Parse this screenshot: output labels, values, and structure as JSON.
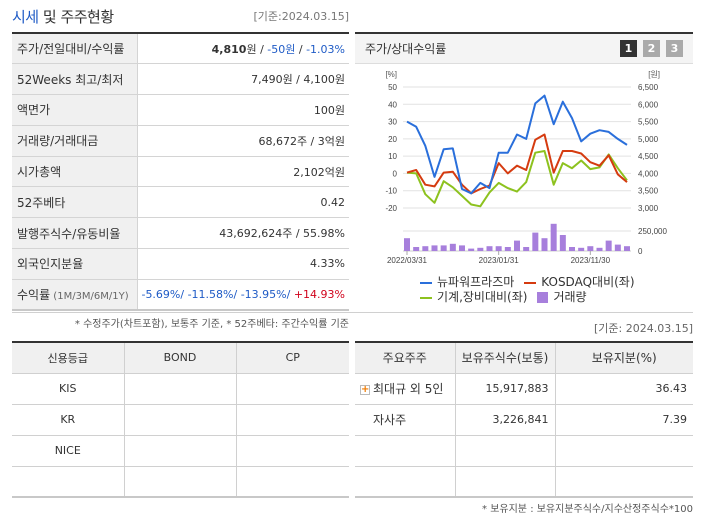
{
  "left": {
    "title_accent": "시세",
    "title_rest": " 및 주주현황",
    "date": "[기준:2024.03.15]",
    "rows": [
      {
        "label": "주가/전일대비/수익률",
        "price": "4,810",
        "price_unit": "원",
        "sep": " / ",
        "change": "-50원",
        "sep2": " / ",
        "rate": "-1.03%"
      },
      {
        "label": "52Weeks 최고/최저",
        "value": "7,490원 / 4,100원"
      },
      {
        "label": "액면가",
        "value": "100원"
      },
      {
        "label": "거래량/거래대금",
        "value": "68,672주 / 3억원"
      },
      {
        "label": "시가총액",
        "value": "2,102억원"
      },
      {
        "label": "52주베타",
        "value": "0.42"
      },
      {
        "label": "발행주식수/유동비율",
        "value": "43,692,624주 / 55.98%"
      },
      {
        "label": "외국인지분율",
        "value": "4.33%"
      },
      {
        "label": "수익률",
        "label_sub": " (1M/3M/6M/1Y)",
        "r1": "-5.69%/",
        "r2": " -11.58%/",
        "r3": " -13.95%/",
        "r4": " +14.93%"
      }
    ],
    "note": "* 수정주가(차트포함), 보통주 기준, * 52주베타: 주간수익률 기준"
  },
  "chart": {
    "title": "주가/상대수익률",
    "pages": [
      "1",
      "2",
      "3"
    ],
    "active_page": "1",
    "left_unit": "[%]",
    "right_unit": "[원]",
    "legend": {
      "s1": "뉴파워프라즈마",
      "s2": "KOSDAQ대비(좌)",
      "s3": "기계,장비대비(좌)",
      "s4": "거래량"
    }
  },
  "chart_data": {
    "type": "line",
    "title": "주가/상대수익률",
    "x_ticks": [
      "2022/03/31",
      "2023/01/31",
      "2023/11/30"
    ],
    "ylim_left": [
      -20,
      50
    ],
    "yticks_left": [
      50,
      40,
      30,
      20,
      10,
      0,
      -10,
      -20
    ],
    "ylim_right": [
      3000,
      6500
    ],
    "yticks_right": [
      "6,500",
      "6,000",
      "5,500",
      "5,000",
      "4,500",
      "4,000",
      "3,500",
      "3,000"
    ],
    "volume_ticks": [
      "250,000",
      "0"
    ],
    "series": [
      {
        "name": "뉴파워프라즈마",
        "color": "#2a6fdb",
        "values": [
          30,
          27,
          16,
          -2,
          14,
          14.5,
          -9,
          -11.5,
          -5.5,
          -8.5,
          12,
          12,
          22.5,
          20,
          40.5,
          45,
          28.5,
          41.5,
          32,
          18.5,
          23,
          25,
          24,
          20,
          16.5
        ]
      },
      {
        "name": "KOSDAQ대비(좌)",
        "color": "#d53b10",
        "values": [
          0.5,
          2,
          -6.5,
          -7.5,
          0.5,
          1,
          -6.5,
          -11.5,
          -9,
          -7,
          6,
          0,
          4.5,
          2,
          19.5,
          22.5,
          0.5,
          13,
          13,
          11.5,
          6.5,
          4.5,
          10.5,
          -0.5,
          -5
        ]
      },
      {
        "name": "기계,장비대비(좌)",
        "color": "#8dc21f",
        "values": [
          0.5,
          0,
          -12,
          -17,
          -4.5,
          -8,
          -13,
          -18,
          -19,
          -11,
          -5.5,
          -8.5,
          -10.5,
          -5,
          12,
          13,
          -6.5,
          6,
          3,
          7.5,
          2.5,
          3.5,
          11,
          3,
          -4
        ]
      },
      {
        "name": "거래량",
        "color": "#a77fdc",
        "type": "bar",
        "values": [
          160000,
          50000,
          60000,
          70000,
          70000,
          90000,
          70000,
          30000,
          40000,
          60000,
          60000,
          50000,
          130000,
          50000,
          230000,
          160000,
          340000,
          200000,
          50000,
          40000,
          60000,
          40000,
          130000,
          80000,
          60000
        ]
      }
    ]
  },
  "grade": {
    "headers": [
      "신용등급",
      "BOND",
      "CP"
    ],
    "rows": [
      [
        "KIS",
        "",
        ""
      ],
      [
        "KR",
        "",
        ""
      ],
      [
        "NICE",
        "",
        ""
      ],
      [
        "",
        "",
        ""
      ]
    ]
  },
  "shareholders": {
    "date": "[기준: 2024.03.15]",
    "headers": [
      "주요주주",
      "보유주식수(보통)",
      "보유지분(%)"
    ],
    "rows": [
      {
        "name": "최대규 외 5인",
        "shares": "15,917,883",
        "pct": "36.43",
        "expand": true
      },
      {
        "name": "자사주",
        "shares": "3,226,841",
        "pct": "7.39",
        "expand": false
      },
      {
        "name": "",
        "shares": "",
        "pct": ""
      },
      {
        "name": "",
        "shares": "",
        "pct": ""
      }
    ],
    "note": "* 보유지분 : 보유지분주식수/지수산정주식수*100"
  }
}
